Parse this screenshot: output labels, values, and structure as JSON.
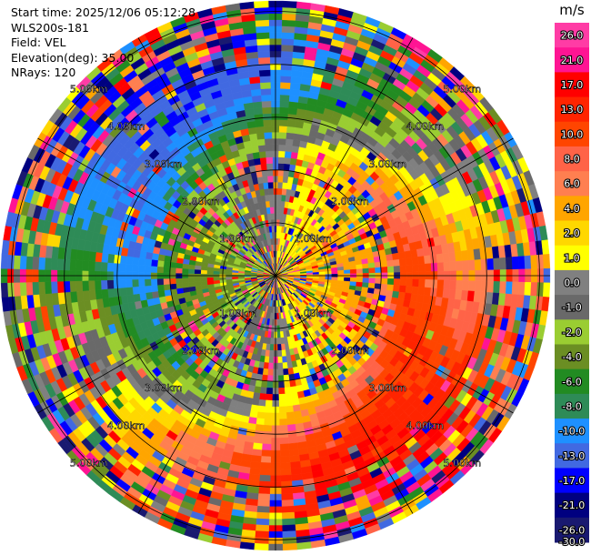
{
  "header": {
    "start_time": "Start time: 2025/12/06 05:12:28",
    "instrument": "WLS200s-181",
    "field": "Field: VEL",
    "elevation": "Elevation(deg): 35.00",
    "nrays": "NRays: 120"
  },
  "chart_data": {
    "type": "heatmap",
    "projection": "polar-ppi",
    "field": "VEL",
    "elevation_deg": 35.0,
    "nrays": 120,
    "units": "m/s",
    "range_rings_km": [
      1.0,
      2.0,
      3.0,
      4.0,
      5.0
    ],
    "range_ring_labels": [
      "1.00km",
      "2.00km",
      "3.00km",
      "4.00km",
      "5.00km"
    ],
    "max_range_km": 5.2,
    "colorbar": {
      "title": "m/s",
      "ticks": [
        "26.0",
        "21.0",
        "17.0",
        "13.0",
        "10.0",
        "8.0",
        "6.0",
        "4.0",
        "2.0",
        "1.0",
        "0.0",
        "-1.0",
        "-2.0",
        "-4.0",
        "-6.0",
        "-8.0",
        "-10.0",
        "-13.0",
        "-17.0",
        "-21.0",
        "-26.0",
        "-30.0"
      ],
      "colors_top_to_bottom": [
        "#ff3ca5",
        "#ff1493",
        "#ff0000",
        "#ff2400",
        "#ff4500",
        "#ff6347",
        "#ff7f50",
        "#ffa500",
        "#ffd700",
        "#ffff00",
        "#808080",
        "#696969",
        "#9acd32",
        "#6b8e23",
        "#228b22",
        "#2e8b57",
        "#1e90ff",
        "#4169e1",
        "#0000ff",
        "#000080",
        "#191970"
      ]
    },
    "pattern": {
      "near_blue_azimuth_deg": 270,
      "near_red_azimuth_deg": 90,
      "far_blue_azimuth_deg": 330,
      "far_red_azimuth_deg": 150
    }
  }
}
